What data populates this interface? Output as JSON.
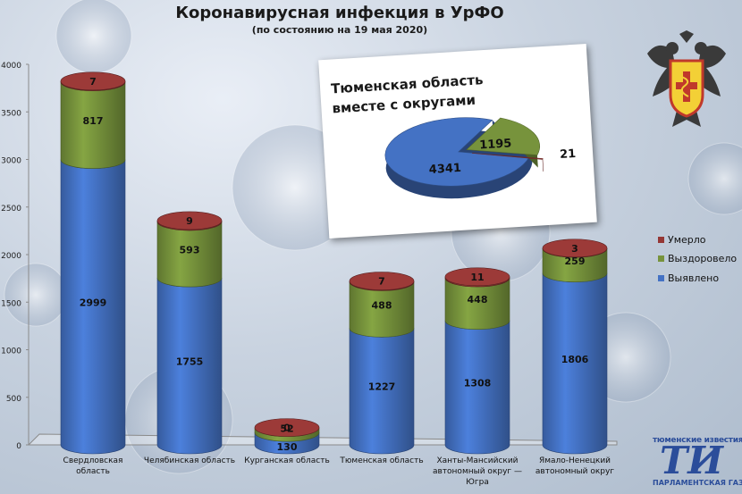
{
  "header": {
    "title": "Коронавирусная инфекция в УрФО",
    "subtitle": "(по состоянию на 19 мая 2020)"
  },
  "colors": {
    "detected": "#4472c4",
    "recovered": "#77933c",
    "died": "#953735"
  },
  "chart_data": [
    {
      "type": "bar",
      "stacked": true,
      "categories": [
        "Свердловская область",
        "Челябинская область",
        "Курганская область",
        "Тюменская область",
        "Ханты-Мансийский автономный округ — Югра",
        "Ямало-Ненецкий автономный округ"
      ],
      "series": [
        {
          "name": "Выявлено",
          "values": [
            2999,
            1755,
            130,
            1227,
            1308,
            1806
          ]
        },
        {
          "name": "Выздоровело",
          "values": [
            817,
            593,
            52,
            488,
            448,
            259
          ]
        },
        {
          "name": "Умерло",
          "values": [
            7,
            9,
            0,
            7,
            11,
            3
          ]
        }
      ],
      "ylim": [
        0,
        4000
      ],
      "yticks": [
        0,
        500,
        1000,
        1500,
        2000,
        2500,
        3000,
        3500,
        4000
      ],
      "legend": "right",
      "grid": false
    },
    {
      "type": "pie",
      "title": "Тюменская область вместе с округами",
      "labels": [
        "Выявлено",
        "Выздоровело",
        "Умерло"
      ],
      "values": [
        4341,
        1195,
        21
      ]
    }
  ],
  "category_lines": [
    [
      "Свердловская",
      "область"
    ],
    [
      "Челябинская область"
    ],
    [
      "Курганская область"
    ],
    [
      "Тюменская область"
    ],
    [
      "Ханты-Мансийский",
      "автономный округ —",
      "Югра"
    ],
    [
      "Ямало-Ненецкий",
      "автономный округ"
    ]
  ],
  "inset": {
    "title_line1": "Тюменская область",
    "title_line2": "вместе с округами"
  },
  "brand": {
    "top": "тюменские известия",
    "mark": "ТИ",
    "bottom": "ПАРЛАМЕНТСКАЯ ГАЗЕТА"
  }
}
